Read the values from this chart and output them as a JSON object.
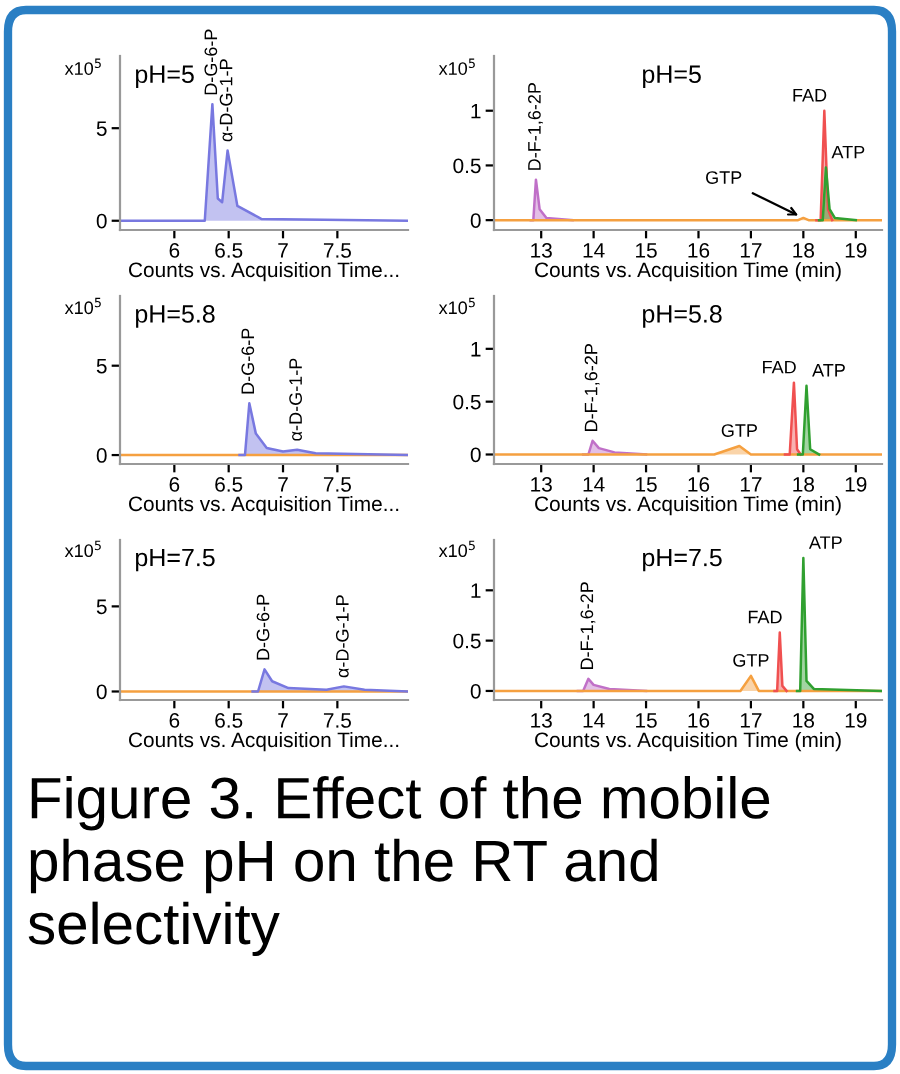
{
  "chart_data": [
    {
      "type": "area",
      "title": "pH=5",
      "xlabel": "Counts vs. Acquisition Time...",
      "ylabel": "x10$^{5}$",
      "xlim": [
        5.5,
        8.15
      ],
      "ylim": [
        -0.5,
        8.9
      ],
      "xticks": [
        6,
        6.5,
        7,
        7.5
      ],
      "yticks": [
        0,
        5
      ],
      "grid": false,
      "series": [
        {
          "color": "#7878e0",
          "x": [
            5.5,
            6.28,
            6.35,
            6.4,
            6.44,
            6.49,
            6.58,
            6.8,
            8.15
          ],
          "values": [
            0,
            0,
            6.3,
            1.2,
            1.0,
            3.8,
            0.8,
            0.1,
            0
          ]
        }
      ],
      "annotations": [
        {
          "text": "D-G-6-P",
          "x": 6.35,
          "y": 6.3
        },
        {
          "text": "α-D-G-1-P",
          "x": 6.49,
          "y": 3.8
        }
      ]
    },
    {
      "type": "area",
      "title": "pH=5",
      "xlabel": "Counts vs. Acquisition Time (min)",
      "ylabel": "x10$^{5}$",
      "xlim": [
        12.1,
        19.5
      ],
      "ylim": [
        -0.09,
        1.5
      ],
      "xticks": [
        13,
        14,
        15,
        16,
        17,
        18,
        19
      ],
      "yticks": [
        0,
        0.5,
        1
      ],
      "grid": false,
      "series": [
        {
          "color": "#c070c8",
          "x": [
            12.8,
            12.85,
            12.9,
            12.97,
            13.1,
            13.6
          ],
          "values": [
            0,
            0,
            0.37,
            0.1,
            0.02,
            0
          ]
        },
        {
          "color": "#f5a040",
          "x": [
            12.1,
            17.9,
            18.0,
            18.1,
            19.5
          ],
          "values": [
            0,
            0,
            0.02,
            0,
            0
          ]
        },
        {
          "color": "#f05050",
          "x": [
            18.25,
            18.33,
            18.4,
            18.47,
            18.55
          ],
          "values": [
            0,
            0,
            1.0,
            0.1,
            0
          ]
        },
        {
          "color": "#30a030",
          "x": [
            18.3,
            18.37,
            18.43,
            18.5,
            18.6,
            19.0
          ],
          "values": [
            0,
            0,
            0.48,
            0.1,
            0.02,
            0
          ]
        }
      ],
      "annotations": [
        {
          "text": "D-F-1,6-2P",
          "x": 12.9,
          "y": 0.37
        },
        {
          "text": "GTP",
          "x": 18.0,
          "y": 0.02
        },
        {
          "text": "FAD",
          "x": 18.4,
          "y": 1.0
        },
        {
          "text": "ATP",
          "x": 18.43,
          "y": 0.48
        }
      ]
    },
    {
      "type": "area",
      "title": "pH=5.8",
      "xlabel": "Counts vs. Acquisition Time...",
      "ylabel": "x10$^{5}$",
      "xlim": [
        5.5,
        8.15
      ],
      "ylim": [
        -0.5,
        8.9
      ],
      "xticks": [
        6,
        6.5,
        7,
        7.5
      ],
      "yticks": [
        0,
        5
      ],
      "grid": false,
      "series": [
        {
          "type": "line",
          "color": "#f5a040",
          "x": [
            5.5,
            8.15
          ],
          "values": [
            0,
            0
          ]
        },
        {
          "color": "#7878e0",
          "x": [
            6.6,
            6.65,
            6.69,
            6.75,
            6.85,
            7.0,
            7.13,
            7.3,
            8.15
          ],
          "values": [
            0,
            0,
            2.9,
            1.2,
            0.4,
            0.2,
            0.3,
            0.1,
            0
          ]
        }
      ],
      "annotations": [
        {
          "text": "D-G-6-P",
          "x": 6.69,
          "y": 2.9
        },
        {
          "text": "α-D-G-1-P",
          "x": 7.13,
          "y": 0.3
        }
      ]
    },
    {
      "type": "area",
      "title": "pH=5.8",
      "xlabel": "Counts vs. Acquisition Time (min)",
      "ylabel": "x10$^{5}$",
      "xlim": [
        12.1,
        19.5
      ],
      "ylim": [
        -0.09,
        1.5
      ],
      "xticks": [
        13,
        14,
        15,
        16,
        17,
        18,
        19
      ],
      "yticks": [
        0,
        0.5,
        1
      ],
      "grid": false,
      "series": [
        {
          "color": "#c070c8",
          "x": [
            13.8,
            13.9,
            13.98,
            14.1,
            14.4,
            15.0
          ],
          "values": [
            0,
            0,
            0.13,
            0.06,
            0.02,
            0
          ]
        },
        {
          "color": "#f5a040",
          "x": [
            12.1,
            16.3,
            16.78,
            17.0,
            19.5
          ],
          "values": [
            0,
            0,
            0.08,
            0,
            0
          ]
        },
        {
          "color": "#f05050",
          "x": [
            17.65,
            17.74,
            17.82,
            17.88,
            17.95
          ],
          "values": [
            0,
            0,
            0.68,
            0.05,
            0
          ]
        },
        {
          "color": "#30a030",
          "x": [
            17.9,
            17.99,
            18.06,
            18.13,
            18.3
          ],
          "values": [
            0,
            0,
            0.65,
            0.05,
            0
          ]
        }
      ],
      "annotations": [
        {
          "text": "D-F-1,6-2P",
          "x": 13.98,
          "y": 0.13
        },
        {
          "text": "GTP",
          "x": 16.78,
          "y": 0.08
        },
        {
          "text": "FAD",
          "x": 17.82,
          "y": 0.68
        },
        {
          "text": "ATP",
          "x": 18.06,
          "y": 0.65
        }
      ]
    },
    {
      "type": "area",
      "title": "pH=7.5",
      "xlabel": "Counts vs. Acquisition Time...",
      "ylabel": "x10$^{5}$",
      "xlim": [
        5.5,
        8.15
      ],
      "ylim": [
        -0.5,
        8.9
      ],
      "xticks": [
        6,
        6.5,
        7,
        7.5
      ],
      "yticks": [
        0,
        5
      ],
      "grid": false,
      "series": [
        {
          "type": "line",
          "color": "#f5a040",
          "x": [
            5.5,
            8.15
          ],
          "values": [
            0,
            0
          ]
        },
        {
          "color": "#7878e0",
          "x": [
            6.72,
            6.77,
            6.83,
            6.9,
            7.05,
            7.4,
            7.56,
            7.75,
            8.15
          ],
          "values": [
            0,
            0,
            1.3,
            0.6,
            0.2,
            0.1,
            0.3,
            0.1,
            0
          ]
        }
      ],
      "annotations": [
        {
          "text": "D-G-6-P",
          "x": 6.83,
          "y": 1.3
        },
        {
          "text": "α-D-G-1-P",
          "x": 7.56,
          "y": 0.3
        }
      ]
    },
    {
      "type": "area",
      "title": "pH=7.5",
      "xlabel": "Counts vs. Acquisition Time (min)",
      "ylabel": "x10$^{5}$",
      "xlim": [
        12.1,
        19.5
      ],
      "ylim": [
        -0.09,
        1.5
      ],
      "xticks": [
        13,
        14,
        15,
        16,
        17,
        18,
        19
      ],
      "yticks": [
        0,
        0.5,
        1
      ],
      "grid": false,
      "series": [
        {
          "color": "#c070c8",
          "x": [
            13.7,
            13.8,
            13.9,
            14.0,
            14.3,
            15.0
          ],
          "values": [
            0,
            0,
            0.12,
            0.06,
            0.02,
            0
          ]
        },
        {
          "color": "#f5a040",
          "x": [
            12.1,
            16.8,
            17.0,
            17.15,
            19.5
          ],
          "values": [
            0,
            0,
            0.15,
            0,
            0
          ]
        },
        {
          "color": "#f05050",
          "x": [
            17.45,
            17.5,
            17.55,
            17.6,
            17.68
          ],
          "values": [
            0,
            0,
            0.58,
            0.05,
            0
          ]
        },
        {
          "color": "#30a030",
          "x": [
            17.88,
            17.94,
            18.0,
            18.06,
            18.2,
            19.5
          ],
          "values": [
            0,
            0,
            1.32,
            0.1,
            0.02,
            0
          ]
        }
      ],
      "annotations": [
        {
          "text": "D-F-1,6-2P",
          "x": 13.9,
          "y": 0.12
        },
        {
          "text": "GTP",
          "x": 17.0,
          "y": 0.15
        },
        {
          "text": "FAD",
          "x": 17.55,
          "y": 0.58
        },
        {
          "text": "ATP",
          "x": 18.0,
          "y": 1.32
        },
        "Figure 3. Effect of the mobile phase pH on the RT and selectivity"
      ]
    }
  ]
}
